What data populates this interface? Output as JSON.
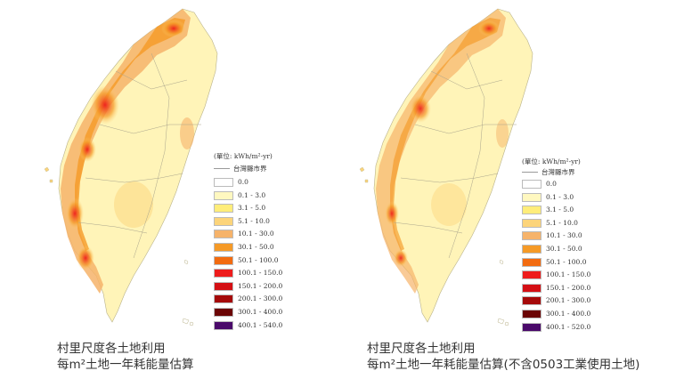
{
  "maps": [
    {
      "caption_line1": "村里尺度各土地利用",
      "caption_line2": "每m²土地一年耗能量估算",
      "legend_unit": "(單位: kWh/m²-yr)",
      "legend_border": "台灣縣市界",
      "legend_items": [
        {
          "label": "0.0",
          "color": "#ffffff"
        },
        {
          "label": "0.1 - 3.0",
          "color": "#fff8c0"
        },
        {
          "label": "3.1 - 5.0",
          "color": "#ffed7a"
        },
        {
          "label": "5.1 - 10.0",
          "color": "#fcd47a"
        },
        {
          "label": "10.1 - 30.0",
          "color": "#f6b36a"
        },
        {
          "label": "30.1 - 50.0",
          "color": "#f59a27"
        },
        {
          "label": "50.1 - 100.0",
          "color": "#f26b10"
        },
        {
          "label": "100.1 - 150.0",
          "color": "#ee1c1c"
        },
        {
          "label": "150.1 - 200.0",
          "color": "#d40f14"
        },
        {
          "label": "200.1 - 300.0",
          "color": "#a50a0a"
        },
        {
          "label": "300.1 - 400.0",
          "color": "#6b0505"
        },
        {
          "label": "400.1 - 540.0",
          "color": "#4a0a6a"
        }
      ]
    },
    {
      "caption_line1": "村里尺度各土地利用",
      "caption_line2": "每m²土地一年耗能量估算(不含0503工業使用土地)",
      "legend_unit": "(單位: kWh/m²-yr)",
      "legend_border": "台灣縣市界",
      "legend_items": [
        {
          "label": "0.0",
          "color": "#ffffff"
        },
        {
          "label": "0.1 - 3.0",
          "color": "#fff8c0"
        },
        {
          "label": "3.1 - 5.0",
          "color": "#ffed7a"
        },
        {
          "label": "5.1 - 10.0",
          "color": "#fcd47a"
        },
        {
          "label": "10.1 - 30.0",
          "color": "#f6b36a"
        },
        {
          "label": "30.1 - 50.0",
          "color": "#f59a27"
        },
        {
          "label": "50.1 - 100.0",
          "color": "#f26b10"
        },
        {
          "label": "100.1 - 150.0",
          "color": "#ee1c1c"
        },
        {
          "label": "150.1 - 200.0",
          "color": "#d40f14"
        },
        {
          "label": "200.1 - 300.0",
          "color": "#a50a0a"
        },
        {
          "label": "300.1 - 400.0",
          "color": "#6b0505"
        },
        {
          "label": "400.1 - 520.0",
          "color": "#4a0a6a"
        }
      ]
    }
  ]
}
